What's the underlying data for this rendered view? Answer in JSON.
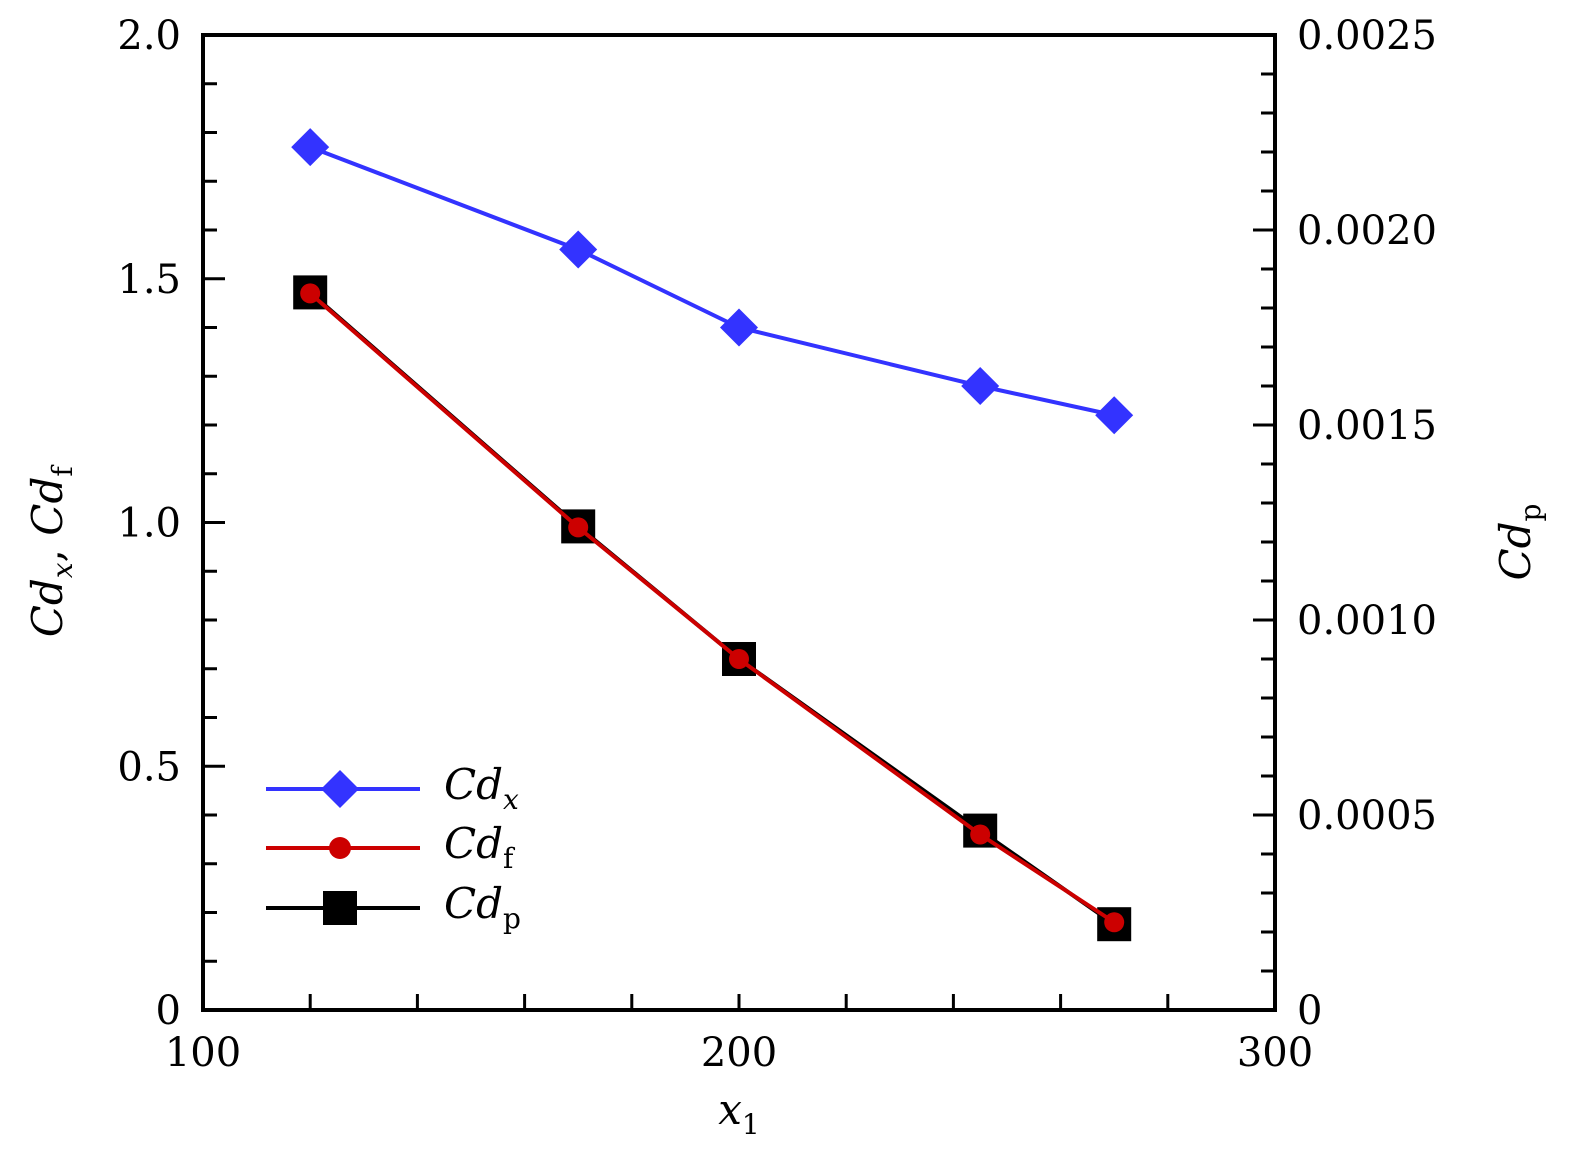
{
  "chart_data": {
    "type": "line",
    "x": [
      120,
      170,
      200,
      245,
      270
    ],
    "xlabel": {
      "main": "x",
      "sub": "1"
    },
    "xlim": [
      100,
      300
    ],
    "xticks": [
      "100",
      "200",
      "300"
    ],
    "ylabel_left": {
      "parts": [
        {
          "main": "Cd",
          "sub": "x"
        },
        {
          "main": "Cd",
          "sub": "f"
        }
      ],
      "separator": ", "
    },
    "ylim_left": [
      0,
      2.0
    ],
    "yticks_left": [
      "0",
      "0.5",
      "1.0",
      "1.5",
      "2.0"
    ],
    "ylabel_right": {
      "main": "Cd",
      "sub": "p"
    },
    "ylim_right": [
      0,
      0.0025
    ],
    "yticks_right": [
      "0",
      "0.0005",
      "0.0010",
      "0.0015",
      "0.0020",
      "0.0025"
    ],
    "legend_position": "bottom-left",
    "grid": false,
    "series": [
      {
        "name": {
          "main": "Cd",
          "sub": "x"
        },
        "axis": "left",
        "color": "#3333ff",
        "marker": "diamond",
        "values": [
          1.77,
          1.56,
          1.4,
          1.28,
          1.22
        ]
      },
      {
        "name": {
          "main": "Cd",
          "sub": "f"
        },
        "axis": "left",
        "color": "#cc0000",
        "marker": "circle",
        "values": [
          1.47,
          0.99,
          0.72,
          0.36,
          0.18
        ]
      },
      {
        "name": {
          "main": "Cd",
          "sub": "p"
        },
        "axis": "right",
        "color": "#000000",
        "marker": "square",
        "values": [
          0.00184,
          0.00124,
          0.0009,
          0.00046,
          0.00022
        ]
      }
    ]
  }
}
